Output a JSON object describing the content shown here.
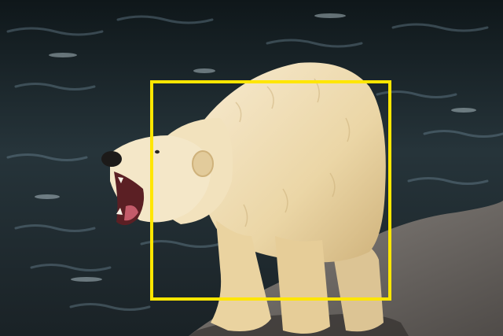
{
  "scene": {
    "subject": "polar-bear",
    "water_color": "#1f2a2e",
    "water_highlight": "#6f8fa0",
    "fur_color": "#efdcb0",
    "fur_shadow": "#c9ad78",
    "rock_color": "#6f6a66"
  },
  "annotation": {
    "box_color": "#ffe600"
  }
}
